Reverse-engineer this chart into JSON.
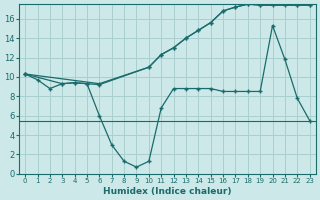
{
  "xlabel": "Humidex (Indice chaleur)",
  "background_color": "#cce8e8",
  "grid_color": "#aacfcf",
  "line_color": "#1a6b6b",
  "xlim": [
    -0.5,
    23.5
  ],
  "ylim": [
    0,
    17.5
  ],
  "xticks": [
    0,
    1,
    2,
    3,
    4,
    5,
    6,
    7,
    8,
    9,
    10,
    11,
    12,
    13,
    14,
    15,
    16,
    17,
    18,
    19,
    20,
    21,
    22,
    23
  ],
  "yticks": [
    0,
    2,
    4,
    6,
    8,
    10,
    12,
    14,
    16
  ],
  "line1_x": [
    0,
    1,
    2,
    3,
    4,
    5,
    6,
    7,
    8,
    9,
    10,
    11,
    12,
    13,
    14,
    15,
    16,
    17,
    18,
    19,
    20,
    21,
    22,
    23
  ],
  "line1_y": [
    10.3,
    9.7,
    8.8,
    9.3,
    9.4,
    9.3,
    6.0,
    3.0,
    1.3,
    0.7,
    1.3,
    6.8,
    8.8,
    8.8,
    8.8,
    8.8,
    8.5,
    8.5,
    8.5,
    8.5,
    15.3,
    11.8,
    7.8,
    5.5
  ],
  "line2_x": [
    0,
    6,
    10,
    11,
    12,
    13,
    14,
    15,
    16,
    17,
    18,
    19,
    22,
    23
  ],
  "line2_y": [
    10.3,
    9.3,
    11.0,
    12.3,
    13.0,
    14.0,
    14.8,
    15.6,
    16.8,
    17.2,
    17.5,
    17.4,
    17.4,
    17.4
  ],
  "line3_x": [
    0,
    3,
    4,
    5,
    6,
    10,
    11,
    12,
    13,
    14,
    15,
    16,
    17,
    18,
    19,
    20,
    21,
    22,
    23
  ],
  "line3_y": [
    10.3,
    9.3,
    9.4,
    9.3,
    9.2,
    11.0,
    12.3,
    13.0,
    14.0,
    14.8,
    15.6,
    16.8,
    17.2,
    17.5,
    17.4,
    17.4,
    17.4,
    17.4,
    17.4
  ]
}
